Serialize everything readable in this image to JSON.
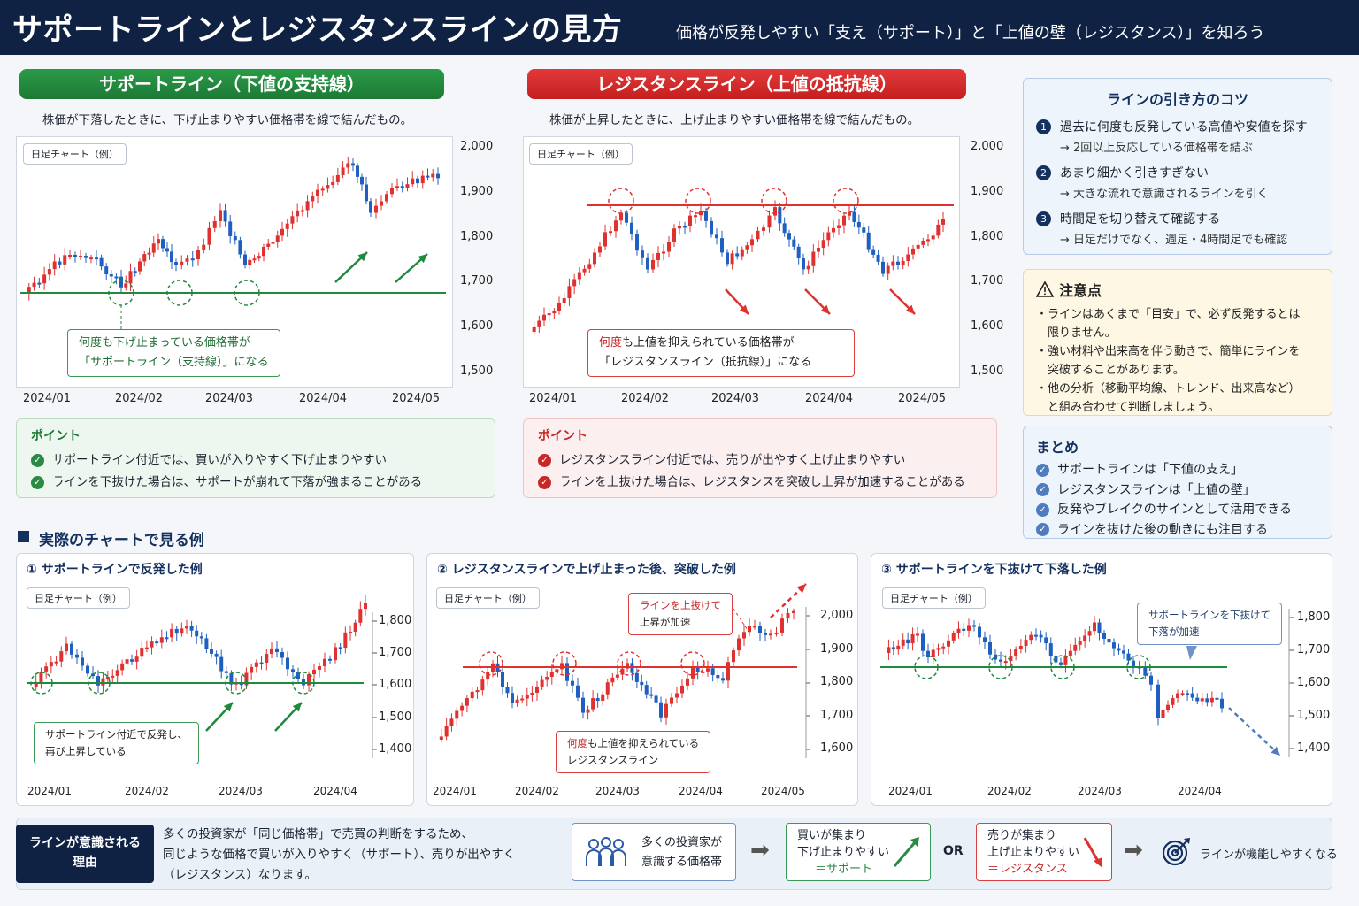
{
  "header": {
    "title": "サポートラインとレジスタンスラインの見方",
    "subtitle": "価格が反発しやすい「支え（サポート）」と「上値の壁（レジスタンス）」を知ろう"
  },
  "support": {
    "title": "サポートライン（下値の支持線）",
    "desc": "株価が下落したときに、下げ止まりやすい価格帯を線で結んだもの。",
    "chart_tag": "日足チャート（例）",
    "callout_line1": "何度も下げ止まっている価格帯が",
    "callout_line2": "「サポートライン（支持線）」になる",
    "point_title": "ポイント",
    "points": [
      "サポートライン付近では、買いが入りやすく下げ止まりやすい",
      "ラインを下抜けた場合は、サポートが崩れて下落が強まることがある"
    ]
  },
  "resistance": {
    "title": "レジスタンスライン（上値の抵抗線）",
    "desc": "株価が上昇したときに、上げ止まりやすい価格帯を線で結んだもの。",
    "chart_tag": "日足チャート（例）",
    "callout_line1_hl": "何度",
    "callout_line1_rest": "も上値を抑えられている価格帯が",
    "callout_line2": "「レジスタンスライン（抵抗線）」になる",
    "point_title": "ポイント",
    "points": [
      "レジスタンスライン付近では、売りが出やすく上げ止まりやすい",
      "ラインを上抜けた場合は、レジスタンスを突破し上昇が加速することがある"
    ]
  },
  "tips": {
    "title": "ラインの引き方のコツ",
    "items": [
      {
        "num": "1",
        "main": "過去に何度も反発している高値や安値を探す",
        "sub": "→ 2回以上反応している価格帯を結ぶ"
      },
      {
        "num": "2",
        "main": "あまり細かく引きすぎない",
        "sub": "→ 大きな流れで意識されるラインを引く"
      },
      {
        "num": "3",
        "main": "時間足を切り替えて確認する",
        "sub": "→ 日足だけでなく、週足・4時間足でも確認"
      }
    ]
  },
  "caution": {
    "icon": "warning-icon",
    "title": "注意点",
    "lines": [
      "・ラインはあくまで「目安」で、必ず反発するとは",
      "　限りません。",
      "・強い材料や出来高を伴う動きで、簡単にラインを",
      "　突破することがあります。",
      "・他の分析（移動平均線、トレンド、出来高など）",
      "　と組み合わせて判断しましょう。"
    ]
  },
  "summary": {
    "title": "まとめ",
    "items": [
      "サポートラインは「下値の支え」",
      "レジスタンスラインは「上値の壁」",
      "反発やブレイクのサインとして活用できる",
      "ラインを抜けた後の動きにも注目する"
    ]
  },
  "examples": {
    "section_title": "実際のチャートで見る例",
    "ex1": {
      "title": "① サポートラインで反発した例",
      "tag": "日足チャート（例）",
      "callout_line1": "サポートライン付近で反発し、",
      "callout_line2": "再び上昇している"
    },
    "ex2": {
      "title": "② レジスタンスラインで上げ止まった後、突破した例",
      "tag": "日足チャート（例）",
      "callout_top_line1": "ラインを上抜けて",
      "callout_top_line2": "上昇が加速",
      "callout_bottom_line1_hl": "何度",
      "callout_bottom_line1_rest": "も上値を抑えられている",
      "callout_bottom_line2": "レジスタンスライン"
    },
    "ex3": {
      "title": "③ サポートラインを下抜けて下落した例",
      "tag": "日足チャート（例）",
      "callout_line1": "サポートラインを下抜けて",
      "callout_line2": "下落が加速"
    }
  },
  "reason": {
    "badge_line1": "ラインが意識される",
    "badge_line2": "理由",
    "text_lines": [
      "多くの投資家が「同じ価格帯」で売買の判断をするため、",
      "同じような価格で買いが入りやすく（サポート）、売りが出やすく",
      "（レジスタンス）なります。"
    ],
    "flow1_line1": "多くの投資家が",
    "flow1_line2": "意識する価格帯",
    "flow2_line1": "買いが集まり",
    "flow2_line2": "下げ止まりやすい",
    "flow2_line3": "＝サポート",
    "or": "OR",
    "flow3_line1": "売りが集まり",
    "flow3_line2": "上げ止まりやすい",
    "flow3_line3": "＝レジスタンス",
    "result": "ラインが機能しやすくなる"
  },
  "chart_data": [
    {
      "type": "candlestick",
      "id": "support-main",
      "x_ticks": [
        "2024/01",
        "2024/02",
        "2024/03",
        "2024/04",
        "2024/05"
      ],
      "y_ticks": [
        "2,000",
        "1,900",
        "1,800",
        "1,700",
        "1,600",
        "1,500"
      ],
      "ylim": [
        1450,
        2020
      ],
      "support_level": 1675,
      "up_color": "#e03131",
      "down_color": "#1f5fbf",
      "line_color": "#1f8a3c"
    },
    {
      "type": "candlestick",
      "id": "resistance-main",
      "x_ticks": [
        "2024/01",
        "2024/02",
        "2024/03",
        "2024/04",
        "2024/05"
      ],
      "y_ticks": [
        "2,000",
        "1,900",
        "1,800",
        "1,700",
        "1,600",
        "1,500"
      ],
      "ylim": [
        1450,
        2020
      ],
      "resistance_level": 1870,
      "line_color": "#e03131"
    },
    {
      "type": "candlestick",
      "id": "example-1",
      "x_ticks": [
        "2024/01",
        "2024/02",
        "2024/03",
        "2024/04"
      ],
      "y_ticks": [
        "1,800",
        "1,700",
        "1,600",
        "1,500",
        "1,400"
      ],
      "support_level": 1610
    },
    {
      "type": "candlestick",
      "id": "example-2",
      "x_ticks": [
        "2024/01",
        "2024/02",
        "2024/03",
        "2024/04",
        "2024/05"
      ],
      "y_ticks": [
        "2,000",
        "1,900",
        "1,800",
        "1,700",
        "1,600"
      ],
      "resistance_level": 1850
    },
    {
      "type": "candlestick",
      "id": "example-3",
      "x_ticks": [
        "2024/01",
        "2024/02",
        "2024/03",
        "2024/04"
      ],
      "y_ticks": [
        "1,800",
        "1,700",
        "1,600",
        "1,500",
        "1,400"
      ],
      "support_level": 1650
    }
  ]
}
